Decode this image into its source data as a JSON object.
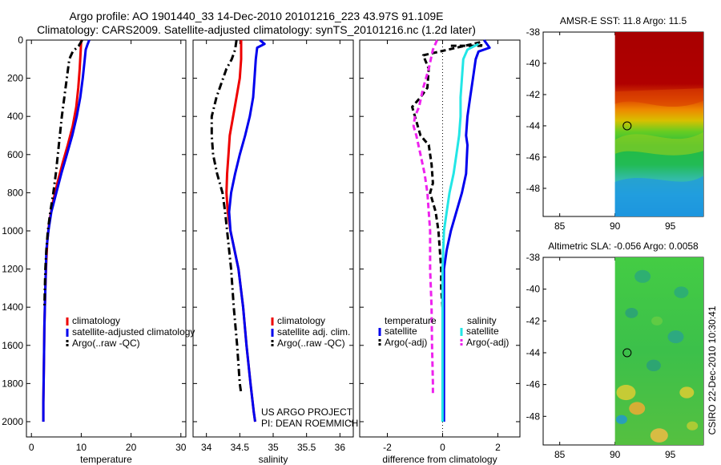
{
  "titles": {
    "line1": "Argo profile: AO 1901440_33 14-Dec-2010 20101216_223 43.97S 91.109E",
    "line2": "Climatology: CARS2009. Satellite-adjusted climatology: synTS_20101216.nc (1.2d later)"
  },
  "credit": "CSIRO 22-Dec-2010 10:30:41",
  "project": {
    "line1": "US ARGO PROJECT",
    "line2": "PI: DEAN ROEMMICH"
  },
  "colors": {
    "red": "#ee0000",
    "blue": "#0000ee",
    "black": "#000000",
    "cyan": "#22e6e6",
    "magenta": "#ee22ee"
  },
  "chart_data": [
    {
      "type": "line",
      "xlabel": "temperature",
      "xlim": [
        -1,
        31
      ],
      "ylim": [
        2080,
        0
      ],
      "xticks": [
        "0",
        "10",
        "20",
        "30"
      ],
      "yticks": [
        "0",
        "200",
        "400",
        "600",
        "800",
        "1000",
        "1200",
        "1400",
        "1600",
        "1800",
        "2000"
      ],
      "series": [
        {
          "name": "climatology",
          "color": "red",
          "style": "solid",
          "points": [
            [
              10,
              0
            ],
            [
              9.9,
              50
            ],
            [
              9.7,
              150
            ],
            [
              9.4,
              250
            ],
            [
              9,
              350
            ],
            [
              8.3,
              450
            ],
            [
              7.3,
              550
            ],
            [
              6.2,
              650
            ],
            [
              5.2,
              750
            ],
            [
              4.3,
              850
            ],
            [
              3.6,
              950
            ],
            [
              3.2,
              1050
            ],
            [
              3,
              1150
            ],
            [
              2.8,
              1300
            ],
            [
              2.6,
              1500
            ],
            [
              2.5,
              1700
            ],
            [
              2.4,
              1900
            ],
            [
              2.4,
              2000
            ]
          ]
        },
        {
          "name": "satellite-adjusted climatology",
          "color": "blue",
          "style": "solid",
          "points": [
            [
              11.6,
              0
            ],
            [
              11.3,
              20
            ],
            [
              10.9,
              50
            ],
            [
              10.7,
              100
            ],
            [
              10.3,
              200
            ],
            [
              9.8,
              300
            ],
            [
              9.1,
              400
            ],
            [
              8.2,
              500
            ],
            [
              7.1,
              600
            ],
            [
              6,
              700
            ],
            [
              5,
              800
            ],
            [
              4,
              900
            ],
            [
              3.4,
              1000
            ],
            [
              3,
              1100
            ],
            [
              2.8,
              1300
            ],
            [
              2.6,
              1500
            ],
            [
              2.5,
              1700
            ],
            [
              2.4,
              1900
            ],
            [
              2.4,
              2000
            ]
          ]
        },
        {
          "name": "Argo(..raw -QC)",
          "color": "black",
          "style": "dashdot",
          "points": [
            [
              10.2,
              0
            ],
            [
              9.5,
              30
            ],
            [
              8.3,
              60
            ],
            [
              7.6,
              100
            ],
            [
              7.1,
              200
            ],
            [
              6.6,
              300
            ],
            [
              6.1,
              400
            ],
            [
              5.7,
              500
            ],
            [
              5.3,
              600
            ],
            [
              4.9,
              700
            ],
            [
              4.4,
              800
            ],
            [
              3.8,
              900
            ],
            [
              3.3,
              1000
            ],
            [
              3,
              1100
            ],
            [
              2.8,
              1200
            ],
            [
              2.6,
              1400
            ]
          ]
        }
      ],
      "legend": [
        "climatology",
        "satellite-adjusted climatology",
        "Argo(..raw -QC)"
      ],
      "legend_position": "bottom-center"
    },
    {
      "type": "line",
      "xlabel": "salinity",
      "xlim": [
        33.8,
        36.2
      ],
      "ylim": [
        2080,
        0
      ],
      "xticks": [
        "34",
        "34.5",
        "35",
        "35.5",
        "36"
      ],
      "series": [
        {
          "name": "climatology",
          "color": "red",
          "style": "solid",
          "points": [
            [
              34.52,
              0
            ],
            [
              34.52,
              100
            ],
            [
              34.5,
              200
            ],
            [
              34.45,
              300
            ],
            [
              34.4,
              400
            ],
            [
              34.35,
              500
            ],
            [
              34.33,
              600
            ],
            [
              34.31,
              700
            ],
            [
              34.3,
              800
            ],
            [
              34.32,
              900
            ],
            [
              34.36,
              1000
            ],
            [
              34.42,
              1100
            ],
            [
              34.48,
              1200
            ],
            [
              34.55,
              1400
            ],
            [
              34.6,
              1600
            ],
            [
              34.66,
              1800
            ],
            [
              34.71,
              1950
            ],
            [
              34.73,
              2000
            ]
          ]
        },
        {
          "name": "satellite adj. clim.",
          "color": "blue",
          "style": "solid",
          "points": [
            [
              34.8,
              0
            ],
            [
              34.87,
              20
            ],
            [
              34.76,
              40
            ],
            [
              34.74,
              100
            ],
            [
              34.72,
              200
            ],
            [
              34.7,
              300
            ],
            [
              34.65,
              400
            ],
            [
              34.58,
              500
            ],
            [
              34.5,
              600
            ],
            [
              34.43,
              700
            ],
            [
              34.37,
              800
            ],
            [
              34.34,
              900
            ],
            [
              34.36,
              1000
            ],
            [
              34.42,
              1100
            ],
            [
              34.48,
              1200
            ],
            [
              34.55,
              1400
            ],
            [
              34.6,
              1600
            ],
            [
              34.66,
              1800
            ],
            [
              34.71,
              1950
            ],
            [
              34.73,
              2000
            ]
          ]
        },
        {
          "name": "Argo(..raw -QC)",
          "color": "black",
          "style": "dashdot",
          "points": [
            [
              34.45,
              0
            ],
            [
              34.43,
              50
            ],
            [
              34.38,
              100
            ],
            [
              34.3,
              150
            ],
            [
              34.15,
              300
            ],
            [
              34.08,
              400
            ],
            [
              34.08,
              500
            ],
            [
              34.1,
              600
            ],
            [
              34.16,
              700
            ],
            [
              34.24,
              800
            ],
            [
              34.28,
              900
            ],
            [
              34.31,
              1000
            ],
            [
              34.34,
              1100
            ],
            [
              34.37,
              1200
            ],
            [
              34.41,
              1400
            ],
            [
              34.46,
              1600
            ],
            [
              34.5,
              1800
            ],
            [
              34.52,
              1850
            ]
          ]
        }
      ],
      "legend": [
        "climatology",
        "satellite adj. clim.",
        "Argo(..raw -QC)"
      ],
      "legend_position": "bottom-right"
    },
    {
      "type": "line",
      "xlabel": "difference from climatology",
      "xlim": [
        -3,
        2.8
      ],
      "ylim": [
        2080,
        0
      ],
      "xticks": [
        "-2",
        "0",
        "2"
      ],
      "series": [
        {
          "name": "satellite",
          "group": "temperature",
          "color": "blue",
          "style": "solid",
          "points": [
            [
              1.5,
              0
            ],
            [
              1.7,
              40
            ],
            [
              1.3,
              60
            ],
            [
              1.2,
              100
            ],
            [
              1.1,
              200
            ],
            [
              1,
              300
            ],
            [
              0.9,
              400
            ],
            [
              0.85,
              500
            ],
            [
              0.9,
              550
            ],
            [
              0.85,
              700
            ],
            [
              0.7,
              800
            ],
            [
              0.5,
              900
            ],
            [
              0.3,
              1000
            ],
            [
              0.15,
              1100
            ],
            [
              0.05,
              1200
            ],
            [
              0.05,
              1500
            ],
            [
              0.05,
              2000
            ]
          ]
        },
        {
          "name": "Argo(-adj)",
          "group": "temperature",
          "color": "black",
          "style": "dashed",
          "points": [
            [
              0.3,
              30
            ],
            [
              1.4,
              30
            ],
            [
              1.4,
              10
            ],
            [
              -0.7,
              80
            ],
            [
              -0.5,
              150
            ],
            [
              -0.55,
              250
            ],
            [
              -0.8,
              300
            ],
            [
              -1.1,
              350
            ],
            [
              -0.9,
              450
            ],
            [
              -0.8,
              500
            ],
            [
              -0.5,
              550
            ],
            [
              -0.4,
              650
            ],
            [
              -0.35,
              750
            ],
            [
              -0.45,
              800
            ],
            [
              -0.25,
              900
            ],
            [
              -0.15,
              1000
            ],
            [
              -0.1,
              1100
            ],
            [
              -0.05,
              1200
            ],
            [
              -0.05,
              1300
            ],
            [
              0,
              1400
            ]
          ]
        },
        {
          "name": "satellite",
          "group": "salinity",
          "color": "cyan",
          "style": "solid",
          "points": [
            [
              1.3,
              20
            ],
            [
              0.9,
              50
            ],
            [
              0.75,
              100
            ],
            [
              0.7,
              200
            ],
            [
              0.65,
              300
            ],
            [
              0.65,
              400
            ],
            [
              0.6,
              500
            ],
            [
              0.5,
              600
            ],
            [
              0.4,
              700
            ],
            [
              0.25,
              800
            ],
            [
              0.15,
              900
            ],
            [
              0.05,
              1000
            ],
            [
              0,
              1200
            ],
            [
              0,
              1500
            ],
            [
              0,
              2000
            ]
          ]
        },
        {
          "name": "Argo(-adj)",
          "group": "salinity",
          "color": "magenta",
          "style": "dashed",
          "points": [
            [
              -0.2,
              0
            ],
            [
              -0.35,
              50
            ],
            [
              -0.5,
              150
            ],
            [
              -0.7,
              250
            ],
            [
              -0.85,
              350
            ],
            [
              -1,
              400
            ],
            [
              -1.05,
              450
            ],
            [
              -0.95,
              500
            ],
            [
              -0.8,
              600
            ],
            [
              -0.65,
              700
            ],
            [
              -0.55,
              800
            ],
            [
              -0.5,
              900
            ],
            [
              -0.45,
              1000
            ],
            [
              -0.45,
              1200
            ],
            [
              -0.4,
              1400
            ],
            [
              -0.38,
              1600
            ],
            [
              -0.35,
              1800
            ],
            [
              -0.35,
              1850
            ]
          ]
        }
      ],
      "zero_line": "dotted",
      "legend_groups": [
        {
          "title": "temperature",
          "items": [
            "satellite",
            "Argo(-adj)"
          ]
        },
        {
          "title": "salinity",
          "items": [
            "satellite",
            "Argo(-adj)"
          ]
        }
      ],
      "legend_position": "bottom-center"
    },
    {
      "type": "heatmap",
      "title": "AMSR-E SST: 11.8 Argo: 11.5",
      "xlim": [
        83.5,
        98
      ],
      "ylim": [
        -49.8,
        -38
      ],
      "xticks": [
        "85",
        "90",
        "95"
      ],
      "yticks": [
        "-38",
        "-40",
        "-42",
        "-44",
        "-46",
        "-48"
      ],
      "data_region_x": [
        90,
        98
      ],
      "float_position": [
        91.1,
        -44.0
      ],
      "pattern": "warm (dark red) north of -42, orange transition band near -42 to -43, green/teal south, cyan/blue near -48 to -50"
    },
    {
      "type": "heatmap",
      "title": "Altimetric SLA: -0.056 Argo: 0.0058",
      "xlim": [
        83.5,
        98
      ],
      "ylim": [
        -49.8,
        -38
      ],
      "xticks": [
        "85",
        "90",
        "95"
      ],
      "yticks": [
        "-38",
        "-40",
        "-42",
        "-44",
        "-46",
        "-48"
      ],
      "data_region_x": [
        90,
        98
      ],
      "float_position": [
        91.1,
        -44.0
      ],
      "pattern": "mottled green field with yellow/orange eddies near -46 to -49 and a teal patch near -48"
    }
  ]
}
